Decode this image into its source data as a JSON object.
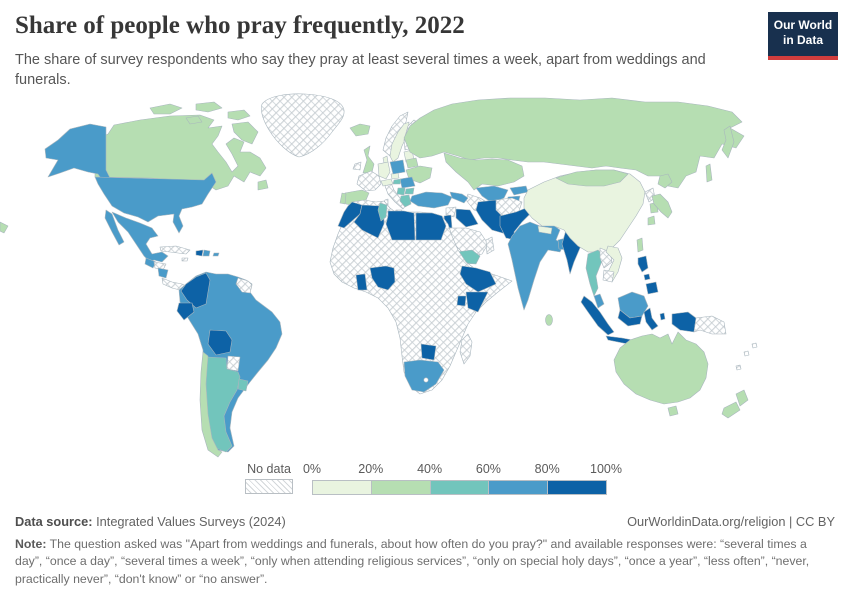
{
  "header": {
    "title": "Share of people who pray frequently, 2022",
    "subtitle": "The share of survey respondents who say they pray at least several times a week, apart from weddings and funerals.",
    "logo_line1": "Our World",
    "logo_line2": "in Data"
  },
  "legend": {
    "no_data_label": "No data",
    "ticks": [
      "0%",
      "20%",
      "40%",
      "60%",
      "80%",
      "100%"
    ]
  },
  "footer": {
    "source_label": "Data source:",
    "source_text": " Integrated Values Surveys (2024)",
    "attribution": "OurWorldinData.org/religion | CC BY",
    "note_label": "Note:",
    "note_text": " The question asked was \"Apart from weddings and funerals, about how often do you pray?\" and available responses were: “several times a day”, “once a day”, “several times a week”, “only when attending religious services”, “only on special holy days”, “once a year”, “less often”, “never, practically never”, “don't know” or “no answer”."
  },
  "chart_data": {
    "type": "choropleth_map",
    "title": "Share of people who pray frequently, 2022",
    "unit": "% of survey respondents",
    "legend_position": "bottom",
    "bins": [
      "0-20%",
      "20-40%",
      "40-60%",
      "60-80%",
      "80-100%"
    ],
    "palette": {
      "0-20%": "#e9f4e0",
      "20-40%": "#b6deb2",
      "40-60%": "#72c5bc",
      "60-80%": "#4a9bc9",
      "80-100%": "#0d62a6",
      "no_data": "hatch"
    },
    "countries": {
      "sweden": "0-20%",
      "germany": "0-20%",
      "czechia": "0-20%",
      "denmark": "0-20%",
      "baltics": "0-20%",
      "alpine": "0-20%",
      "china": "0-20%",
      "vietnam": "0-20%",
      "nepal": "0-20%",
      "canada": "20-40%",
      "iceland": "20-40%",
      "united_kingdom": "20-40%",
      "spain": "20-40%",
      "portugal": "20-40%",
      "ukraine": "20-40%",
      "belarus": "20-40%",
      "russia": "20-40%",
      "kazakhstan": "20-40%",
      "mongolia": "20-40%",
      "japan": "20-40%",
      "south_korea": "20-40%",
      "taiwan": "20-40%",
      "australia": "20-40%",
      "new_zealand": "20-40%",
      "chile": "20-40%",
      "sri_lanka": "20-40%",
      "chukotka_fragment": "20-40%",
      "argentina": "40-60%",
      "uruguay": "40-60%",
      "greece": "40-60%",
      "bulgaria": "40-60%",
      "serbia": "40-60%",
      "hungary": "40-60%",
      "tunisia": "40-60%",
      "yemen": "40-60%",
      "thailand": "40-60%",
      "united_states": "60-80%",
      "alaska": "60-80%",
      "mexico": "60-80%",
      "guatemala": "60-80%",
      "nicaragua": "60-80%",
      "dominican_republic": "60-80%",
      "puerto_rico": "60-80%",
      "south_america_base": "60-80%",
      "poland": "60-80%",
      "romania": "60-80%",
      "turkey": "60-80%",
      "caucasus": "60-80%",
      "uzbekistan": "60-80%",
      "kyrgyzstan": "60-80%",
      "tajikistan": "60-80%",
      "india": "60-80%",
      "bangladesh": "60-80%",
      "malaysia": "60-80%",
      "south_africa": "60-80%",
      "colombia": "80-100%",
      "ecuador": "80-100%",
      "bolivia": "80-100%",
      "haiti": "80-100%",
      "morocco": "80-100%",
      "algeria": "80-100%",
      "libya": "80-100%",
      "egypt": "80-100%",
      "nigeria": "80-100%",
      "ghana": "80-100%",
      "ethiopia": "80-100%",
      "kenya": "80-100%",
      "uganda": "80-100%",
      "zimbabwe": "80-100%",
      "jordan_levant": "80-100%",
      "iraq": "80-100%",
      "iran": "80-100%",
      "pakistan": "80-100%",
      "myanmar": "80-100%",
      "indonesia": "80-100%",
      "philippines": "80-100%",
      "greenland": "no_data",
      "norway": "no_data",
      "finland": "no_data",
      "ireland": "no_data",
      "france": "no_data",
      "italy": "no_data",
      "cuba": "no_data",
      "jamaica": "no_data",
      "honduras": "no_data",
      "costa_rica_panama": "no_data",
      "guyanas": "no_data",
      "paraguay": "no_data",
      "africa_base": "no_data",
      "madagascar": "no_data",
      "saudi_arabia": "no_data",
      "oman": "no_data",
      "syria": "no_data",
      "turkmenistan": "no_data",
      "afghanistan": "no_data",
      "laos": "no_data",
      "cambodia": "no_data",
      "north_korea": "no_data",
      "papua_new_guinea": "no_data",
      "pacific_islands": "no_data"
    }
  }
}
